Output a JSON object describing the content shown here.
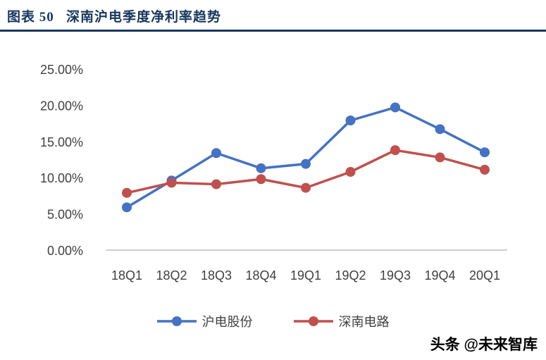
{
  "header": {
    "title": "图表 50   深南沪电季度净利率趋势",
    "accent_color": "#17375E"
  },
  "watermark": {
    "text": "头条 @未来智库"
  },
  "chart_data": {
    "type": "line",
    "title": "深南沪电季度净利率趋势",
    "categories": [
      "18Q1",
      "18Q2",
      "18Q3",
      "18Q4",
      "19Q1",
      "19Q2",
      "19Q3",
      "19Q4",
      "20Q1"
    ],
    "series": [
      {
        "name": "沪电股份",
        "color": "#4472C4",
        "values": [
          5.9,
          9.6,
          13.4,
          11.3,
          11.9,
          17.9,
          19.7,
          16.7,
          13.5
        ]
      },
      {
        "name": "深南电路",
        "color": "#C0504D",
        "values": [
          7.9,
          9.3,
          9.1,
          9.8,
          8.6,
          10.8,
          13.8,
          12.8,
          11.1
        ]
      }
    ],
    "ylim": [
      0,
      25
    ],
    "ytick_step": 5,
    "yticks": [
      "0.00%",
      "5.00%",
      "10.00%",
      "15.00%",
      "20.00%",
      "25.00%"
    ],
    "grid": false,
    "legend_position": "bottom",
    "axis_line_color": "#BFBFBF"
  }
}
